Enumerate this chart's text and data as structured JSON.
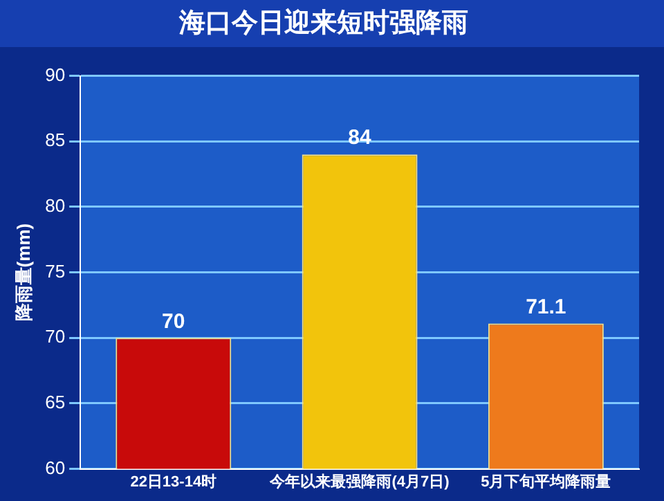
{
  "chart_data": {
    "type": "bar",
    "title": "海口今日迎来短时强降雨",
    "ylabel": "降雨量(mm)",
    "categories": [
      "22日13-14时",
      "今年以来最强降雨(4月7日)",
      "5月下旬平均降雨量"
    ],
    "values": [
      70,
      84,
      71.1
    ],
    "colors": [
      "#c80a0a",
      "#f2c40c",
      "#ee7a1c"
    ],
    "ylim": [
      60,
      90
    ],
    "yticks": [
      60,
      65,
      70,
      75,
      80,
      85,
      90
    ],
    "grid": "y",
    "data_labels": true
  }
}
